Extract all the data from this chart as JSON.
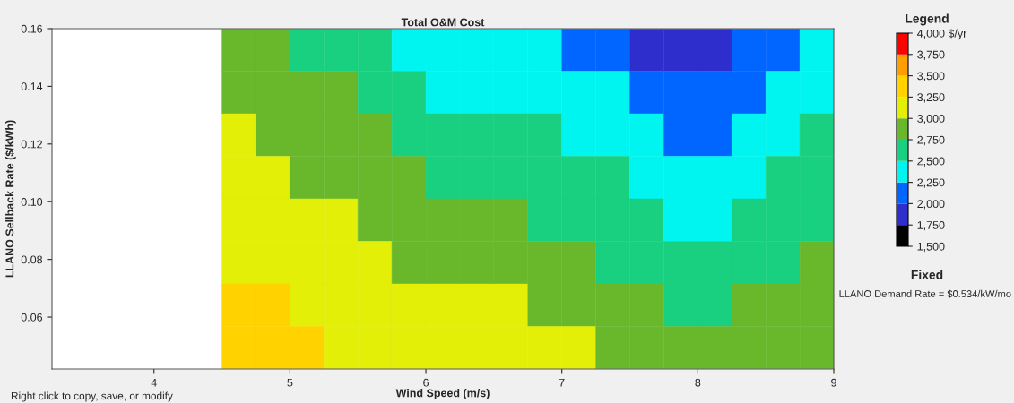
{
  "chart_data": {
    "type": "heatmap",
    "title": "Total O&M Cost",
    "xlabel": "Wind Speed (m/s)",
    "ylabel": "LLANO Sellback Rate ($/kWh)",
    "legend_title": "Legend",
    "x": [
      3.375,
      3.625,
      3.875,
      4.125,
      4.375,
      4.625,
      4.875,
      5.125,
      5.375,
      5.625,
      5.875,
      6.125,
      6.375,
      6.625,
      6.875,
      7.125,
      7.375,
      7.625,
      7.875,
      8.125,
      8.375,
      8.625,
      8.875
    ],
    "y": [
      0.1526,
      0.1379,
      0.1231,
      0.1084,
      0.0936,
      0.0789,
      0.0641,
      0.0494
    ],
    "cells": [
      [
        null,
        null,
        null,
        null,
        null,
        2875,
        2875,
        2625,
        2625,
        2625,
        2375,
        2375,
        2375,
        2375,
        2375,
        2125,
        2125,
        1875,
        1875,
        1875,
        2125,
        2125,
        2375
      ],
      [
        null,
        null,
        null,
        null,
        null,
        2875,
        2875,
        2875,
        2875,
        2625,
        2625,
        2375,
        2375,
        2375,
        2375,
        2375,
        2375,
        2125,
        2125,
        2125,
        2125,
        2375,
        2375
      ],
      [
        null,
        null,
        null,
        null,
        null,
        3125,
        2875,
        2875,
        2875,
        2875,
        2625,
        2625,
        2625,
        2625,
        2625,
        2375,
        2375,
        2375,
        2125,
        2125,
        2375,
        2375,
        2625
      ],
      [
        null,
        null,
        null,
        null,
        null,
        3125,
        3125,
        2875,
        2875,
        2875,
        2875,
        2625,
        2625,
        2625,
        2625,
        2625,
        2625,
        2375,
        2375,
        2375,
        2375,
        2625,
        2625
      ],
      [
        null,
        null,
        null,
        null,
        null,
        3125,
        3125,
        3125,
        3125,
        2875,
        2875,
        2875,
        2875,
        2875,
        2625,
        2625,
        2625,
        2625,
        2375,
        2375,
        2625,
        2625,
        2625
      ],
      [
        null,
        null,
        null,
        null,
        null,
        3125,
        3125,
        3125,
        3125,
        3125,
        2875,
        2875,
        2875,
        2875,
        2875,
        2875,
        2625,
        2625,
        2625,
        2625,
        2625,
        2625,
        2875
      ],
      [
        null,
        null,
        null,
        null,
        null,
        3375,
        3375,
        3125,
        3125,
        3125,
        3125,
        3125,
        3125,
        3125,
        2875,
        2875,
        2875,
        2875,
        2625,
        2625,
        2875,
        2875,
        2875
      ],
      [
        null,
        null,
        null,
        null,
        null,
        3375,
        3375,
        3375,
        3125,
        3125,
        3125,
        3125,
        3125,
        3125,
        3125,
        3125,
        2875,
        2875,
        2875,
        2875,
        2875,
        2875,
        2875
      ]
    ],
    "colors": [
      "#000000",
      "#2e2ecc",
      "#0066ff",
      "#00f5f0",
      "#19d080",
      "#69b82c",
      "#e3ef06",
      "#ffd200",
      "#ff9e00",
      "#ff0000"
    ],
    "clim": [
      1500,
      4000
    ],
    "cticks": [
      {
        "value": 1500,
        "label": "1,500"
      },
      {
        "value": 1750,
        "label": "1,750"
      },
      {
        "value": 2000,
        "label": "2,000"
      },
      {
        "value": 2250,
        "label": "2,250"
      },
      {
        "value": 2500,
        "label": "2,500"
      },
      {
        "value": 2750,
        "label": "2,750"
      },
      {
        "value": 3000,
        "label": "3,000"
      },
      {
        "value": 3250,
        "label": "3,250"
      },
      {
        "value": 3500,
        "label": "3,500"
      },
      {
        "value": 3750,
        "label": "3,750"
      },
      {
        "value": 4000,
        "label": "4,000 $/yr"
      }
    ],
    "xlim": [
      3.25,
      9
    ],
    "xticks": [
      4,
      5,
      6,
      7,
      8,
      9
    ],
    "ylim": [
      0.042,
      0.16
    ],
    "yticks": [
      0.06,
      0.08,
      {
        "value": 0.1,
        "label": "0.10"
      },
      0.12,
      0.14,
      0.16
    ],
    "grid": false,
    "annotations": [
      "Fixed",
      "LLANO Demand Rate = $0.534/kW/mo",
      "Right click to copy, save, or modify"
    ]
  }
}
